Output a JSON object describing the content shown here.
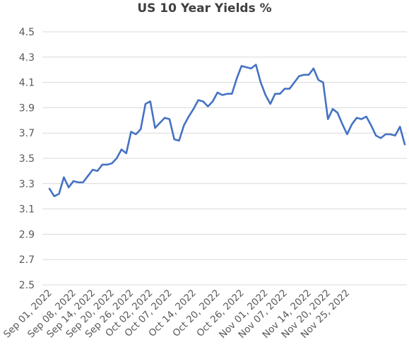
{
  "chart_data": {
    "type": "line",
    "title": "US 10 Year Yields %",
    "xlabel": "",
    "ylabel": "",
    "ylim": [
      2.5,
      4.5
    ],
    "yticks": [
      "4.5",
      "4.3",
      "4.1",
      "3.9",
      "3.7",
      "3.5",
      "3.3",
      "3.1",
      "2.9",
      "2.7",
      "2.5"
    ],
    "grid": true,
    "legend": "none",
    "x_tick_labels": [
      "Sep 01, 2022",
      "Sep 08, 2022",
      "Sep 14, 2022",
      "Sep 20, 2022",
      "Sep 26, 2022",
      "Oct 02, 2022",
      "Oct 07, 2022",
      "Oct 14, 2022",
      "Oct 20, 2022",
      "Oct 26, 2022",
      "Nov 01, 2022",
      "Nov 07, 2022",
      "Nov 14, 2022",
      "Nov 20, 2022",
      "Nov 25, 2022"
    ],
    "x_tick_index": [
      0,
      5,
      9,
      13,
      17,
      21,
      25,
      30,
      35,
      40,
      45,
      49,
      54,
      58,
      62
    ],
    "series": [
      {
        "color": "#4472c4",
        "values": [
          3.26,
          3.2,
          3.22,
          3.35,
          3.27,
          3.32,
          3.31,
          3.31,
          3.36,
          3.41,
          3.4,
          3.45,
          3.45,
          3.46,
          3.5,
          3.57,
          3.54,
          3.71,
          3.69,
          3.73,
          3.93,
          3.95,
          3.74,
          3.78,
          3.82,
          3.81,
          3.65,
          3.64,
          3.76,
          3.83,
          3.89,
          3.96,
          3.95,
          3.91,
          3.95,
          4.02,
          4.0,
          4.01,
          4.01,
          4.13,
          4.23,
          4.22,
          4.21,
          4.24,
          4.1,
          4.0,
          3.93,
          4.01,
          4.01,
          4.05,
          4.05,
          4.1,
          4.15,
          4.16,
          4.16,
          4.21,
          4.12,
          4.1,
          3.81,
          3.89,
          3.86,
          3.77,
          3.69,
          3.77,
          3.82,
          3.81,
          3.83,
          3.76,
          3.68,
          3.66,
          3.69,
          3.69,
          3.68,
          3.75,
          3.61
        ]
      }
    ]
  }
}
